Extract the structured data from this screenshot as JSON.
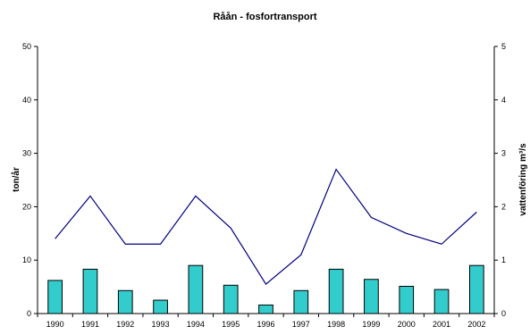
{
  "chart_data": {
    "type": "bar",
    "title": "Råån - fosfortransport",
    "xlabel": "",
    "ylabel": "ton/år",
    "y2label": "vattenföring m³/s",
    "categories": [
      "1990",
      "1991",
      "1992",
      "1993",
      "1994",
      "1995",
      "1996",
      "1997",
      "1998",
      "1999",
      "2000",
      "2001",
      "2002"
    ],
    "series": [
      {
        "type": "bar",
        "axis": "left",
        "values": [
          6.2,
          8.3,
          4.3,
          2.5,
          9.0,
          5.3,
          1.6,
          4.3,
          8.3,
          6.4,
          5.1,
          4.5,
          9.0
        ],
        "color": "#33cccc"
      },
      {
        "type": "line",
        "axis": "right",
        "values": [
          1.4,
          2.2,
          1.3,
          1.3,
          2.2,
          1.6,
          0.55,
          1.1,
          2.7,
          1.8,
          1.5,
          1.3,
          1.9
        ],
        "color": "#000080"
      }
    ],
    "ylim": [
      0,
      50
    ],
    "y2lim": [
      0,
      5
    ],
    "yticks": [
      "0",
      "10",
      "20",
      "30",
      "40",
      "50"
    ],
    "y2ticks": [
      "0",
      "1",
      "2",
      "3",
      "4",
      "5"
    ],
    "grid": false,
    "legend": "none"
  }
}
